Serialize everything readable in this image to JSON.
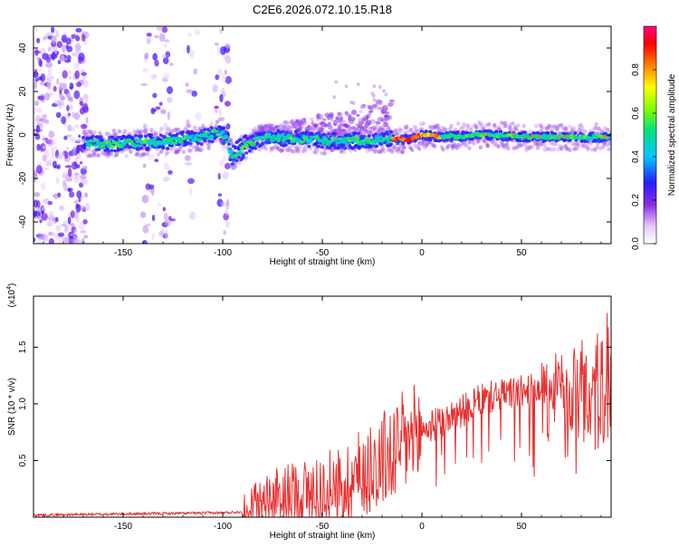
{
  "title": "C2E6.2026.072.10.15.R18",
  "chart_data": [
    {
      "type": "heatmap",
      "xlabel": "Height of straight line (km)",
      "ylabel": "Frequency (Hz)",
      "xlim": [
        -195,
        95
      ],
      "ylim": [
        -50,
        50
      ],
      "xticks": [
        -150,
        -100,
        -50,
        0,
        50
      ],
      "yticks": [
        -40,
        -20,
        0,
        20,
        40
      ],
      "colorbar": {
        "label": "Normalized spectral amplitude",
        "range": [
          0,
          1
        ],
        "ticks": [
          "0.0",
          "0.2",
          "0.4",
          "0.6",
          "0.8"
        ]
      },
      "ridge": [
        {
          "x": -170,
          "y": -4
        },
        {
          "x": -150,
          "y": -4
        },
        {
          "x": -130,
          "y": -3
        },
        {
          "x": -110,
          "y": -1
        },
        {
          "x": -100,
          "y": 2
        },
        {
          "x": -95,
          "y": -10
        },
        {
          "x": -90,
          "y": -6
        },
        {
          "x": -80,
          "y": -1
        },
        {
          "x": -60,
          "y": -2
        },
        {
          "x": -40,
          "y": -3
        },
        {
          "x": -20,
          "y": -2
        },
        {
          "x": -15,
          "y": -2
        },
        {
          "x": -5,
          "y": -2
        },
        {
          "x": 0,
          "y": 0
        },
        {
          "x": 10,
          "y": -1
        },
        {
          "x": 30,
          "y": 0
        },
        {
          "x": 60,
          "y": -1
        },
        {
          "x": 95,
          "y": -1
        }
      ]
    },
    {
      "type": "line",
      "series": [
        {
          "name": "SNR",
          "color": "#e83030"
        }
      ],
      "xlabel": "Height of straight line (km)",
      "ylabel": "SNR (10 * v/v)",
      "scale_note": "(x10^4)",
      "xlim": [
        -195,
        95
      ],
      "ylim": [
        0,
        1.95
      ],
      "xticks": [
        -150,
        -100,
        -50,
        0,
        50
      ],
      "yticks": [
        0.5,
        1.0,
        1.5
      ],
      "envelope": [
        {
          "x": -195,
          "y": 0.02
        },
        {
          "x": -150,
          "y": 0.03
        },
        {
          "x": -100,
          "y": 0.04
        },
        {
          "x": -90,
          "y": 0.05
        },
        {
          "x": -80,
          "y": 0.15
        },
        {
          "x": -70,
          "y": 0.2
        },
        {
          "x": -60,
          "y": 0.24
        },
        {
          "x": -50,
          "y": 0.25
        },
        {
          "x": -40,
          "y": 0.3
        },
        {
          "x": -30,
          "y": 0.45
        },
        {
          "x": -20,
          "y": 0.55
        },
        {
          "x": -10,
          "y": 0.68
        },
        {
          "x": 0,
          "y": 0.78
        },
        {
          "x": 10,
          "y": 0.86
        },
        {
          "x": 20,
          "y": 0.95
        },
        {
          "x": 30,
          "y": 1.05
        },
        {
          "x": 40,
          "y": 1.1
        },
        {
          "x": 50,
          "y": 1.12
        },
        {
          "x": 60,
          "y": 1.15
        },
        {
          "x": 70,
          "y": 1.17
        },
        {
          "x": 80,
          "y": 1.17
        },
        {
          "x": 90,
          "y": 1.15
        },
        {
          "x": 95,
          "y": 1.15
        }
      ]
    }
  ],
  "text": {
    "snr_scale": "(x10",
    "snr_scale_exp": "4",
    "snr_scale_end": ")"
  },
  "colors": {
    "line": "#e83030",
    "background": "#ffffff",
    "axis": "#000000"
  }
}
